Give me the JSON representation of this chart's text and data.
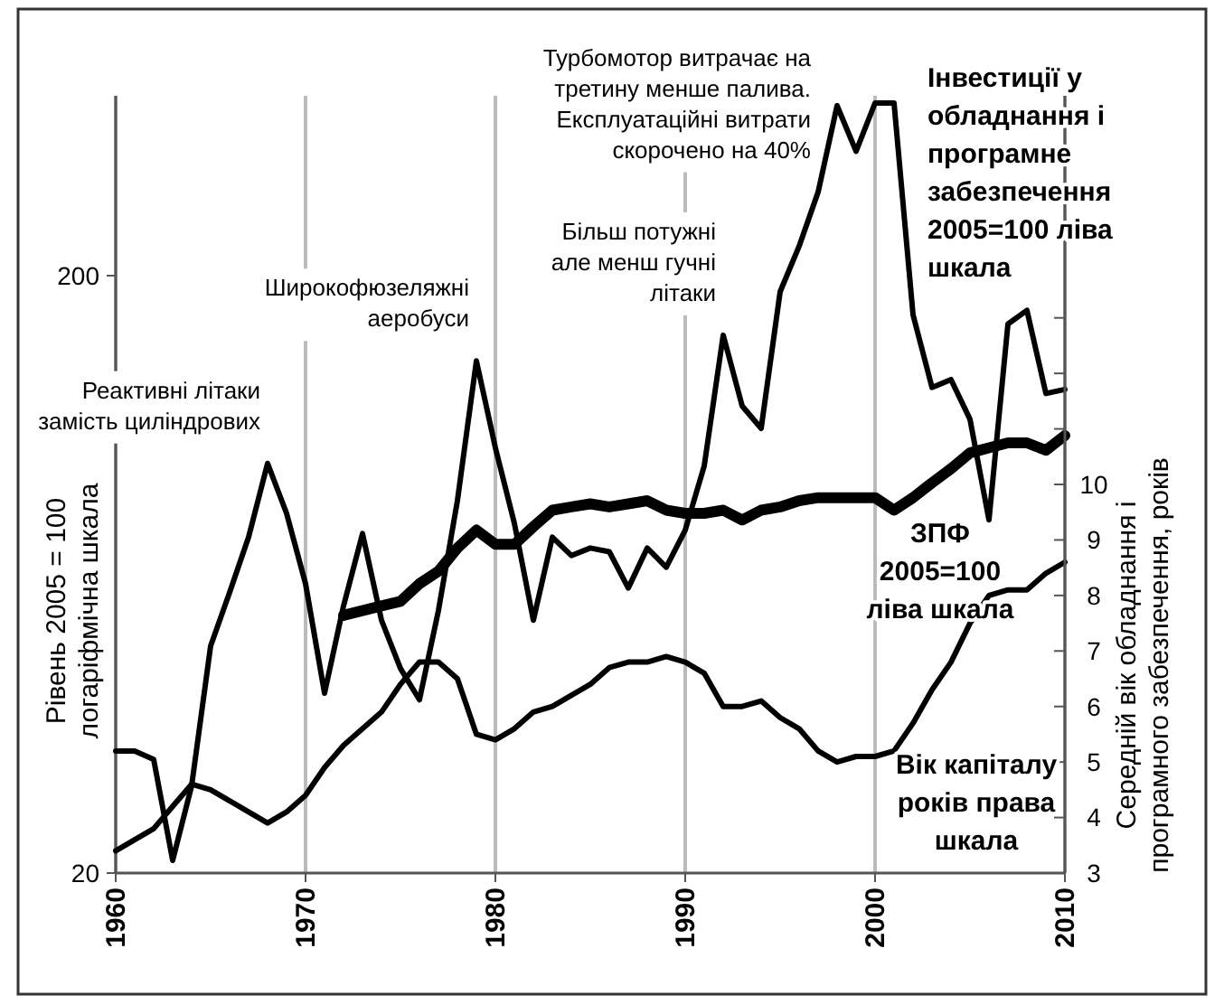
{
  "chart_data": {
    "type": "line",
    "ylabel": "Рівень 2005 = 100 логаріфмічна  шкала",
    "y2label": "Середній вік обладнання і програмного  забезпечення, років",
    "x": [
      1960,
      1961,
      1962,
      1963,
      1964,
      1965,
      1966,
      1967,
      1968,
      1969,
      1970,
      1971,
      1972,
      1973,
      1974,
      1975,
      1976,
      1977,
      1978,
      1979,
      1980,
      1981,
      1982,
      1983,
      1984,
      1985,
      1986,
      1987,
      1988,
      1989,
      1990,
      1991,
      1992,
      1993,
      1994,
      1995,
      1996,
      1997,
      1998,
      1999,
      2000,
      2001,
      2002,
      2003,
      2004,
      2005,
      2006,
      2007,
      2008,
      2009,
      2010
    ],
    "series": [
      {
        "name": "Інвестиції у обладнання і програмне забезпечення 2005=100 ліва шкала",
        "color": "#000000",
        "values": [
          32,
          32,
          31,
          21,
          28,
          48,
          59,
          73,
          97,
          80,
          61,
          40,
          56,
          74,
          53,
          44,
          39,
          55,
          84,
          144,
          103,
          77,
          53,
          73,
          68,
          70,
          69,
          60,
          70,
          65,
          75,
          96,
          159,
          121,
          111,
          188,
          224,
          276,
          385,
          323,
          389,
          389,
          172,
          130,
          134,
          115,
          78,
          166,
          175,
          127,
          129
        ]
      },
      {
        "name": "ЗПФ 2005=100 ліва шкала",
        "color": "#000000",
        "values": [
          null,
          null,
          null,
          null,
          null,
          null,
          null,
          null,
          null,
          null,
          null,
          null,
          54,
          55,
          56,
          57,
          61,
          64,
          70,
          75,
          71,
          71,
          76,
          81,
          82,
          83,
          82,
          83,
          84,
          81,
          80,
          80,
          81,
          78,
          81,
          82,
          84,
          85,
          85,
          85,
          85,
          81,
          85,
          90,
          95,
          101,
          103,
          105,
          105,
          102,
          108
        ]
      },
      {
        "name": "Вік капіталу років права шкала",
        "color": "#000000",
        "axis": "y2",
        "values": [
          3.4,
          3.6,
          3.8,
          4.2,
          4.6,
          4.5,
          4.3,
          4.1,
          3.9,
          4.1,
          4.4,
          4.9,
          5.3,
          5.6,
          5.9,
          6.4,
          6.8,
          6.8,
          6.5,
          5.5,
          5.4,
          5.6,
          5.9,
          6.0,
          6.2,
          6.4,
          6.7,
          6.8,
          6.8,
          6.9,
          6.8,
          6.6,
          6.0,
          6.0,
          6.1,
          5.8,
          5.6,
          5.2,
          5.0,
          5.1,
          5.1,
          5.2,
          5.7,
          6.3,
          6.8,
          7.5,
          8.0,
          8.1,
          8.1,
          8.4,
          8.6
        ]
      }
    ],
    "log": "y",
    "xlim": [
      1960,
      2010
    ],
    "xticks": [
      1960,
      1970,
      1980,
      1990,
      2000,
      2010
    ],
    "ylim": [
      20,
      400
    ],
    "yticks": [
      20,
      200
    ],
    "y2lim": [
      3,
      17
    ],
    "y2ticks": [
      3,
      4,
      5,
      6,
      7,
      8,
      9,
      10,
      {
        "value": 11,
        "label": null
      },
      {
        "value": 12,
        "label": null
      },
      {
        "value": 13,
        "label": null
      }
    ],
    "grid": "x",
    "legend": false,
    "annotations": [
      {
        "text": "Реактивні літаки замість циліндрових",
        "x": 1968,
        "y": 97
      },
      {
        "text": "Широкофюзеляжні аеробуси",
        "x": 1979,
        "y": 144
      },
      {
        "text": "Більш потужні але менш гучні літаки",
        "x": 1992,
        "y": 159
      },
      {
        "text": "Турбомотор витрачає на третину менше палива. Експлуатаційні витрати скорочено на 40%",
        "x": 1997,
        "y": 276
      }
    ]
  }
}
